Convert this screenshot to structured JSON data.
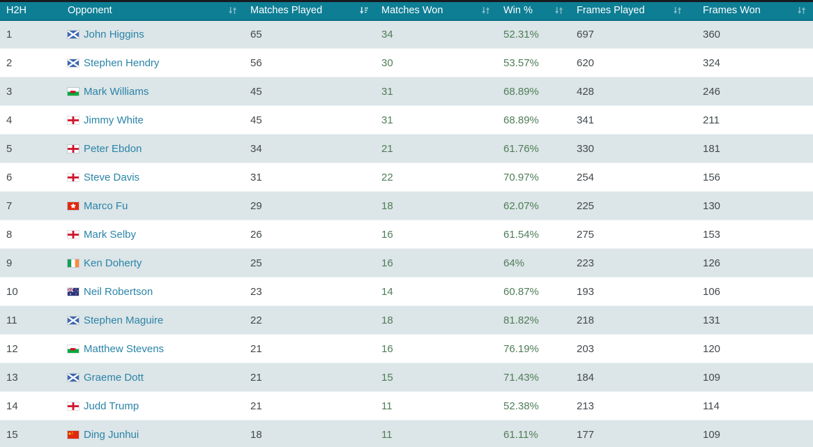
{
  "colors": {
    "header_bg": "#0d7e94",
    "header_top_strip": "#171b1f",
    "header_bottom_border": "#0b6e84",
    "row_alt_bg": "#dce5e7",
    "row_bg": "#ffffff",
    "player_link": "#2a84a8",
    "won_stat_green": "#4f7d58",
    "stat_text": "#43494d"
  },
  "table": {
    "columns": [
      {
        "key": "h2h",
        "label": "H2H",
        "sort": "none"
      },
      {
        "key": "name",
        "label": "Opponent",
        "sort": "both"
      },
      {
        "key": "matches_played",
        "label": "Matches Played",
        "sort": "desc"
      },
      {
        "key": "matches_won",
        "label": "Matches Won",
        "sort": "both"
      },
      {
        "key": "win_pct",
        "label": "Win %",
        "sort": "both"
      },
      {
        "key": "frames_played",
        "label": "Frames Played",
        "sort": "both"
      },
      {
        "key": "frames_won",
        "label": "Frames Won",
        "sort": "both"
      }
    ],
    "rows": [
      {
        "h2h": "1",
        "flag": "scotland",
        "name": "John Higgins",
        "matches_played": "65",
        "matches_won": "34",
        "win_pct": "52.31%",
        "frames_played": "697",
        "frames_won": "360"
      },
      {
        "h2h": "2",
        "flag": "scotland",
        "name": "Stephen Hendry",
        "matches_played": "56",
        "matches_won": "30",
        "win_pct": "53.57%",
        "frames_played": "620",
        "frames_won": "324"
      },
      {
        "h2h": "3",
        "flag": "wales",
        "name": "Mark Williams",
        "matches_played": "45",
        "matches_won": "31",
        "win_pct": "68.89%",
        "frames_played": "428",
        "frames_won": "246"
      },
      {
        "h2h": "4",
        "flag": "england",
        "name": "Jimmy White",
        "matches_played": "45",
        "matches_won": "31",
        "win_pct": "68.89%",
        "frames_played": "341",
        "frames_won": "211"
      },
      {
        "h2h": "5",
        "flag": "england",
        "name": "Peter Ebdon",
        "matches_played": "34",
        "matches_won": "21",
        "win_pct": "61.76%",
        "frames_played": "330",
        "frames_won": "181"
      },
      {
        "h2h": "6",
        "flag": "england",
        "name": "Steve Davis",
        "matches_played": "31",
        "matches_won": "22",
        "win_pct": "70.97%",
        "frames_played": "254",
        "frames_won": "156"
      },
      {
        "h2h": "7",
        "flag": "hongkong",
        "name": "Marco Fu",
        "matches_played": "29",
        "matches_won": "18",
        "win_pct": "62.07%",
        "frames_played": "225",
        "frames_won": "130"
      },
      {
        "h2h": "8",
        "flag": "england",
        "name": "Mark Selby",
        "matches_played": "26",
        "matches_won": "16",
        "win_pct": "61.54%",
        "frames_played": "275",
        "frames_won": "153"
      },
      {
        "h2h": "9",
        "flag": "ireland",
        "name": "Ken Doherty",
        "matches_played": "25",
        "matches_won": "16",
        "win_pct": "64%",
        "frames_played": "223",
        "frames_won": "126"
      },
      {
        "h2h": "10",
        "flag": "australia",
        "name": "Neil Robertson",
        "matches_played": "23",
        "matches_won": "14",
        "win_pct": "60.87%",
        "frames_played": "193",
        "frames_won": "106"
      },
      {
        "h2h": "11",
        "flag": "scotland",
        "name": "Stephen Maguire",
        "matches_played": "22",
        "matches_won": "18",
        "win_pct": "81.82%",
        "frames_played": "218",
        "frames_won": "131"
      },
      {
        "h2h": "12",
        "flag": "wales",
        "name": "Matthew Stevens",
        "matches_played": "21",
        "matches_won": "16",
        "win_pct": "76.19%",
        "frames_played": "203",
        "frames_won": "120"
      },
      {
        "h2h": "13",
        "flag": "scotland",
        "name": "Graeme Dott",
        "matches_played": "21",
        "matches_won": "15",
        "win_pct": "71.43%",
        "frames_played": "184",
        "frames_won": "109"
      },
      {
        "h2h": "14",
        "flag": "england",
        "name": "Judd Trump",
        "matches_played": "21",
        "matches_won": "11",
        "win_pct": "52.38%",
        "frames_played": "213",
        "frames_won": "114"
      },
      {
        "h2h": "15",
        "flag": "china",
        "name": "Ding Junhui",
        "matches_played": "18",
        "matches_won": "11",
        "win_pct": "61.11%",
        "frames_played": "177",
        "frames_won": "109"
      }
    ]
  }
}
